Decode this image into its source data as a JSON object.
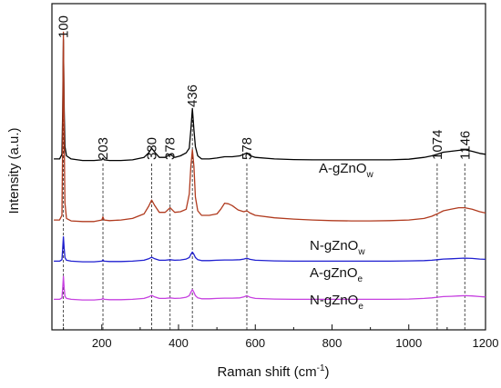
{
  "chart_data": {
    "type": "line",
    "xlabel": "Raman shift (cm",
    "xlabel_sup": "-1",
    "xlabel_end": ")",
    "ylabel": "Intensity (a.u.)",
    "xlim": [
      70,
      1200
    ],
    "ylim": [
      0,
      1
    ],
    "x_ticks": [
      200,
      400,
      600,
      800,
      1000,
      1200
    ],
    "y_ticks_labeled": false,
    "grid": false,
    "peak_markers": [
      {
        "x": 100,
        "label": "100"
      },
      {
        "x": 203,
        "label": "203"
      },
      {
        "x": 330,
        "label": "330"
      },
      {
        "x": 378,
        "label": "378"
      },
      {
        "x": 436,
        "label": "436"
      },
      {
        "x": 578,
        "label": "578"
      },
      {
        "x": 1074,
        "label": "1074"
      },
      {
        "x": 1146,
        "label": "1146"
      }
    ],
    "series": [
      {
        "name": "A-gZnO",
        "name_sub": "w",
        "color": "#000000",
        "x": [
          75,
          90,
          96,
          98,
          100,
          102,
          104,
          108,
          120,
          150,
          180,
          200,
          203,
          206,
          220,
          250,
          280,
          310,
          322,
          330,
          338,
          350,
          365,
          378,
          390,
          405,
          420,
          428,
          432,
          436,
          440,
          444,
          450,
          460,
          480,
          500,
          520,
          540,
          560,
          570,
          578,
          586,
          600,
          650,
          700,
          750,
          800,
          850,
          900,
          950,
          1000,
          1040,
          1060,
          1074,
          1090,
          1110,
          1130,
          1146,
          1165,
          1185,
          1200
        ],
        "y": [
          0.545,
          0.545,
          0.56,
          0.7,
          0.935,
          0.7,
          0.585,
          0.555,
          0.545,
          0.54,
          0.54,
          0.542,
          0.548,
          0.542,
          0.54,
          0.54,
          0.542,
          0.55,
          0.565,
          0.58,
          0.567,
          0.55,
          0.55,
          0.56,
          0.55,
          0.555,
          0.565,
          0.58,
          0.64,
          0.71,
          0.64,
          0.585,
          0.555,
          0.545,
          0.545,
          0.548,
          0.552,
          0.552,
          0.555,
          0.56,
          0.565,
          0.556,
          0.55,
          0.545,
          0.543,
          0.542,
          0.542,
          0.542,
          0.542,
          0.542,
          0.544,
          0.55,
          0.555,
          0.56,
          0.567,
          0.57,
          0.573,
          0.575,
          0.57,
          0.563,
          0.56
        ]
      },
      {
        "name": "N-gZnO",
        "name_sub": "w",
        "color": "#b03a1e",
        "x": [
          75,
          90,
          96,
          98,
          100,
          102,
          104,
          108,
          120,
          150,
          180,
          200,
          203,
          206,
          220,
          250,
          280,
          310,
          322,
          330,
          338,
          350,
          365,
          378,
          390,
          405,
          420,
          428,
          432,
          436,
          440,
          444,
          450,
          460,
          480,
          500,
          510,
          520,
          530,
          540,
          555,
          570,
          578,
          586,
          600,
          650,
          700,
          750,
          800,
          850,
          900,
          950,
          1000,
          1040,
          1060,
          1074,
          1090,
          1110,
          1130,
          1146,
          1165,
          1185,
          1200
        ],
        "y": [
          0.345,
          0.345,
          0.36,
          0.6,
          0.96,
          0.6,
          0.4,
          0.35,
          0.342,
          0.34,
          0.34,
          0.345,
          0.355,
          0.345,
          0.343,
          0.345,
          0.35,
          0.365,
          0.39,
          0.41,
          0.392,
          0.37,
          0.37,
          0.385,
          0.37,
          0.372,
          0.38,
          0.43,
          0.52,
          0.575,
          0.52,
          0.42,
          0.375,
          0.36,
          0.36,
          0.365,
          0.38,
          0.4,
          0.398,
          0.392,
          0.378,
          0.372,
          0.375,
          0.368,
          0.36,
          0.352,
          0.348,
          0.345,
          0.343,
          0.342,
          0.342,
          0.343,
          0.345,
          0.35,
          0.357,
          0.365,
          0.375,
          0.38,
          0.385,
          0.385,
          0.38,
          0.372,
          0.368
        ]
      },
      {
        "name": "A-gZnO",
        "name_sub": "e",
        "color": "#1f1fd0",
        "x": [
          75,
          90,
          96,
          98,
          100,
          102,
          104,
          108,
          120,
          150,
          180,
          200,
          203,
          206,
          220,
          250,
          280,
          310,
          322,
          330,
          338,
          350,
          365,
          378,
          390,
          405,
          420,
          428,
          432,
          436,
          440,
          444,
          450,
          460,
          480,
          500,
          520,
          540,
          560,
          570,
          578,
          586,
          600,
          650,
          700,
          750,
          800,
          850,
          900,
          950,
          1000,
          1040,
          1060,
          1074,
          1090,
          1110,
          1130,
          1146,
          1165,
          1185,
          1200
        ],
        "y": [
          0.21,
          0.21,
          0.215,
          0.25,
          0.29,
          0.25,
          0.222,
          0.213,
          0.21,
          0.208,
          0.208,
          0.21,
          0.214,
          0.21,
          0.209,
          0.209,
          0.21,
          0.213,
          0.218,
          0.223,
          0.218,
          0.213,
          0.213,
          0.215,
          0.213,
          0.214,
          0.217,
          0.222,
          0.232,
          0.24,
          0.232,
          0.222,
          0.215,
          0.212,
          0.212,
          0.213,
          0.214,
          0.214,
          0.215,
          0.217,
          0.22,
          0.216,
          0.213,
          0.211,
          0.21,
          0.21,
          0.21,
          0.21,
          0.21,
          0.21,
          0.211,
          0.212,
          0.213,
          0.215,
          0.217,
          0.218,
          0.219,
          0.22,
          0.219,
          0.217,
          0.216
        ]
      },
      {
        "name": "N-gZnO",
        "name_sub": "e",
        "color": "#c640e0",
        "x": [
          75,
          90,
          96,
          98,
          100,
          102,
          104,
          108,
          120,
          150,
          180,
          200,
          203,
          206,
          220,
          250,
          280,
          310,
          322,
          330,
          338,
          350,
          365,
          378,
          390,
          405,
          420,
          428,
          432,
          436,
          440,
          444,
          450,
          460,
          480,
          500,
          520,
          540,
          560,
          570,
          578,
          586,
          600,
          650,
          700,
          750,
          800,
          850,
          900,
          950,
          1000,
          1040,
          1060,
          1074,
          1090,
          1110,
          1130,
          1146,
          1165,
          1185,
          1200
        ],
        "y": [
          0.085,
          0.085,
          0.09,
          0.12,
          0.16,
          0.12,
          0.095,
          0.088,
          0.085,
          0.083,
          0.083,
          0.085,
          0.089,
          0.085,
          0.084,
          0.084,
          0.085,
          0.088,
          0.093,
          0.098,
          0.093,
          0.088,
          0.088,
          0.09,
          0.088,
          0.089,
          0.092,
          0.097,
          0.108,
          0.117,
          0.108,
          0.097,
          0.09,
          0.087,
          0.087,
          0.088,
          0.089,
          0.089,
          0.09,
          0.093,
          0.097,
          0.092,
          0.088,
          0.086,
          0.085,
          0.085,
          0.085,
          0.085,
          0.085,
          0.085,
          0.086,
          0.088,
          0.09,
          0.092,
          0.094,
          0.095,
          0.096,
          0.097,
          0.096,
          0.094,
          0.093
        ]
      }
    ]
  }
}
